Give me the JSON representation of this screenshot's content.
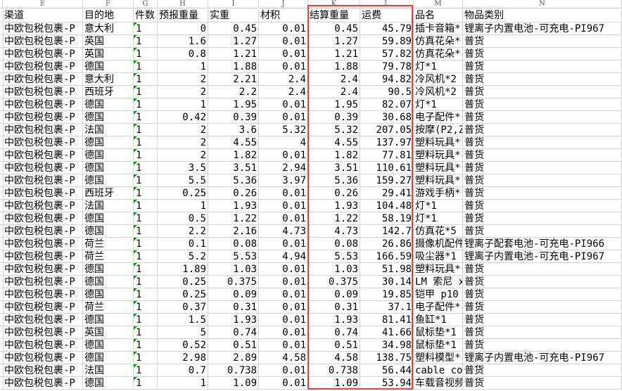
{
  "column_letters": [
    "E",
    "F",
    "G",
    "H",
    "I",
    "J",
    "K",
    "L",
    "M",
    "N"
  ],
  "headers": [
    "渠道",
    "目的地",
    "件数",
    "预报重量",
    "实重",
    "材积",
    "结算重量",
    "运费",
    "品名",
    "物品类别"
  ],
  "highlight_color": "#f03c3c",
  "highlighted_columns": [
    "结算重量",
    "运费"
  ],
  "rows": [
    [
      "中欧包税包裹-P",
      "意大利",
      "1",
      "0",
      "0.45",
      "0.01",
      "0.45",
      "45.79",
      "插卡音箱*",
      "锂离子内置电池-可充电-PI967"
    ],
    [
      "中欧包税包裹-P",
      "英国",
      "1",
      "1.6",
      "1.27",
      "0.01",
      "1.27",
      "59.89",
      "仿真花朵*",
      "普货"
    ],
    [
      "中欧包税包裹-P",
      "英国",
      "1",
      "0.8",
      "1.21",
      "0.01",
      "1.21",
      "57.82",
      "仿真花朵*",
      "普货"
    ],
    [
      "中欧包税包裹-P",
      "德国",
      "1",
      "1",
      "1.88",
      "0.01",
      "1.88",
      "79.78",
      "灯*1",
      "普货"
    ],
    [
      "中欧包税包裹-P",
      "意大利",
      "1",
      "2",
      "2.21",
      "2.4",
      "2.4",
      "94.82",
      "冷风机*2",
      "普货"
    ],
    [
      "中欧包税包裹-P",
      "西班牙",
      "1",
      "2",
      "2.2",
      "2.4",
      "2.4",
      "90.5",
      "冷风机*2",
      "普货"
    ],
    [
      "中欧包税包裹-P",
      "德国",
      "1",
      "1",
      "1.95",
      "0.01",
      "1.95",
      "82.07",
      "灯*1",
      "普货"
    ],
    [
      "中欧包税包裹-P",
      "德国",
      "1",
      "0.42",
      "0.39",
      "0.01",
      "0.39",
      "30.68",
      "电子配件*",
      "普货"
    ],
    [
      "中欧包税包裹-P",
      "法国",
      "1",
      "2",
      "3.6",
      "5.32",
      "5.32",
      "207.05",
      "按摩(P2,Z",
      "普货"
    ],
    [
      "中欧包税包裹-P",
      "德国",
      "1",
      "2",
      "4.55",
      "4",
      "4.55",
      "137.97",
      "塑料玩具*",
      "普货"
    ],
    [
      "中欧包税包裹-P",
      "德国",
      "1",
      "2",
      "1.82",
      "0.01",
      "1.82",
      "77.81",
      "塑料玩具*",
      "普货"
    ],
    [
      "中欧包税包裹-P",
      "德国",
      "1",
      "3.5",
      "3.51",
      "2.94",
      "3.51",
      "110.61",
      "塑料玩具*",
      "普货"
    ],
    [
      "中欧包税包裹-P",
      "德国",
      "1",
      "5.5",
      "5.36",
      "3.97",
      "5.36",
      "159.27",
      "塑料玩具*",
      "普货"
    ],
    [
      "中欧包税包裹-P",
      "西班牙",
      "1",
      "0.25",
      "0.26",
      "0.01",
      "0.26",
      "29.41",
      "游戏手柄*",
      "普货"
    ],
    [
      "中欧包税包裹-P",
      "法国",
      "1",
      "1",
      "1.93",
      "0.01",
      "1.93",
      "104.48",
      "灯*1",
      "普货"
    ],
    [
      "中欧包税包裹-P",
      "德国",
      "1",
      "0.5",
      "1.22",
      "0.01",
      "1.22",
      "58.19",
      "灯*1",
      "普货"
    ],
    [
      "中欧包税包裹-P",
      "德国",
      "1",
      "2.2",
      "2.16",
      "4.73",
      "4.73",
      "142.7",
      "仿真花*5",
      "普货"
    ],
    [
      "中欧包税包裹-P",
      "荷兰",
      "1",
      "0.1",
      "0.08",
      "0.01",
      "0.08",
      "26.86",
      "摄像机配件",
      "锂离子配套电池-可充电-PI966"
    ],
    [
      "中欧包税包裹-P",
      "荷兰",
      "1",
      "5.2",
      "5.53",
      "4.94",
      "5.53",
      "166.59",
      "吸尘器*1",
      "锂离子内置电池-可充电-PI967"
    ],
    [
      "中欧包税包裹-P",
      "德国",
      "1",
      "1.89",
      "1.03",
      "0.01",
      "1.03",
      "51.98",
      "塑料玩具*",
      "普货"
    ],
    [
      "中欧包税包裹-P",
      "德国",
      "1",
      "0.25",
      "0.375",
      "0.01",
      "0.375",
      "30.14",
      "LM 索尼 x",
      "普货"
    ],
    [
      "中欧包税包裹-P",
      "德国",
      "1",
      "0.25",
      "0.09",
      "0.01",
      "0.09",
      "19.85",
      "铠甲 p10",
      "普货"
    ],
    [
      "中欧包税包裹-P",
      "荷兰",
      "1",
      "0.37",
      "0.31",
      "0.01",
      "0.31",
      "37.1",
      "电子配件*",
      "普货"
    ],
    [
      "中欧包税包裹-P",
      "德国",
      "1",
      "1.5",
      "1.93",
      "0.01",
      "1.93",
      "81.41",
      "鱼缸*1",
      "普货"
    ],
    [
      "中欧包税包裹-P",
      "英国",
      "1",
      "5",
      "0.74",
      "0.01",
      "0.74",
      "41.66",
      "鼠标垫*1",
      "普货"
    ],
    [
      "中欧包税包裹-P",
      "德国",
      "1",
      "0.52",
      "0.51",
      "0.01",
      "0.51",
      "34.98",
      "鼠标垫*1",
      "普货"
    ],
    [
      "中欧包税包裹-P",
      "德国",
      "1",
      "2.98",
      "2.89",
      "4.58",
      "4.58",
      "138.75",
      "塑料模型*",
      "锂离子内置电池-可充电-PI967"
    ],
    [
      "中欧包税包裹-P",
      "法国",
      "1",
      "0.7",
      "0.738",
      "0.01",
      "0.738",
      "56.44",
      "cable cor",
      "普货"
    ],
    [
      "中欧包税包裹-P",
      "德国",
      "1",
      "1",
      "1.09",
      "0.01",
      "1.09",
      "53.94",
      "车载音视频",
      "普货"
    ]
  ]
}
